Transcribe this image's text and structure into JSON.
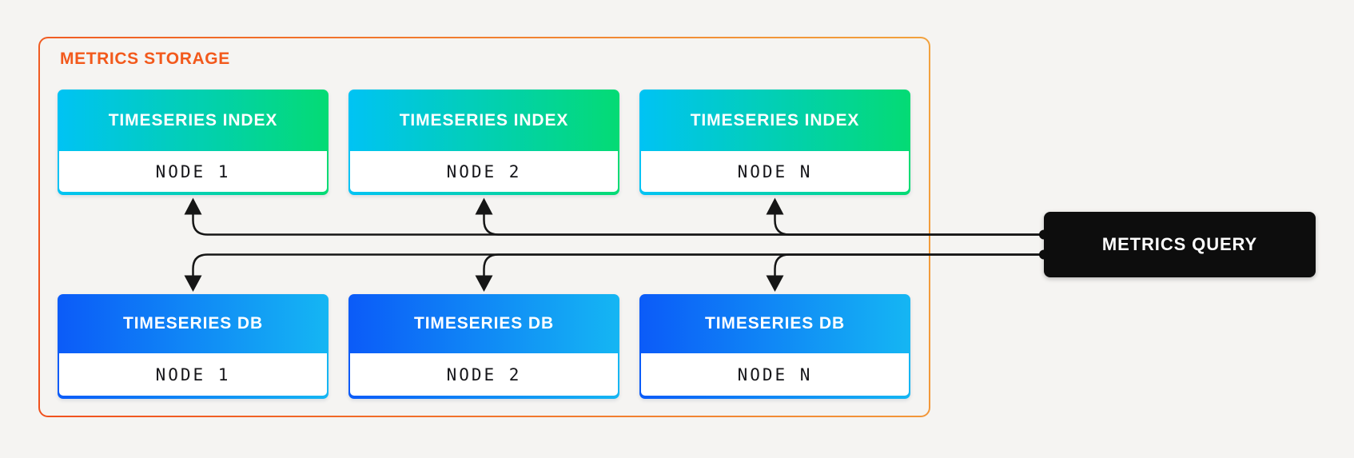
{
  "page": {
    "background_color": "#F5F4F2"
  },
  "storage": {
    "label": "METRICS STORAGE",
    "accent_color": "#F2591C",
    "border_gradient": [
      "#F0511E",
      "#F2A23E"
    ],
    "index_gradient": [
      "#00C3F4",
      "#04DB74"
    ],
    "db_gradient": [
      "#0B5BF8",
      "#15B6F3"
    ],
    "index_nodes": [
      {
        "title": "TIMESERIES INDEX",
        "node": "NODE 1"
      },
      {
        "title": "TIMESERIES INDEX",
        "node": "NODE 2"
      },
      {
        "title": "TIMESERIES INDEX",
        "node": "NODE N"
      }
    ],
    "db_nodes": [
      {
        "title": "TIMESERIES DB",
        "node": "NODE 1"
      },
      {
        "title": "TIMESERIES DB",
        "node": "NODE 2"
      },
      {
        "title": "TIMESERIES DB",
        "node": "NODE N"
      }
    ]
  },
  "query": {
    "label": "METRICS QUERY",
    "background_color": "#0D0D0D",
    "text_color": "#FFFFFF"
  },
  "connections": {
    "arrow_color": "#161616",
    "from": "METRICS QUERY",
    "to_index_row": [
      "TIMESERIES INDEX NODE 1",
      "TIMESERIES INDEX NODE 2",
      "TIMESERIES INDEX NODE N"
    ],
    "to_db_row": [
      "TIMESERIES DB NODE 1",
      "TIMESERIES DB NODE 2",
      "TIMESERIES DB NODE N"
    ]
  }
}
